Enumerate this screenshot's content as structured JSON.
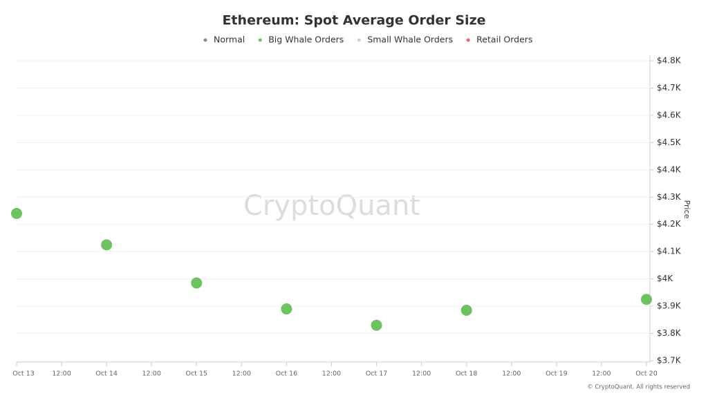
{
  "chart_data": {
    "type": "scatter",
    "title": "Ethereum: Spot Average Order Size",
    "categories": [
      "Oct 13",
      "12:00",
      "Oct 14",
      "12:00",
      "Oct 15",
      "12:00",
      "Oct 16",
      "12:00",
      "Oct 17",
      "12:00",
      "Oct 18",
      "12:00",
      "Oct 19",
      "12:00",
      "Oct 20"
    ],
    "series": [
      {
        "name": "Normal",
        "color": "#8c8c8c",
        "values": [
          null,
          null,
          null,
          null,
          null,
          null,
          null,
          null,
          null,
          null,
          null,
          null,
          null,
          null,
          null
        ]
      },
      {
        "name": "Big Whale Orders",
        "color": "#6cc35f",
        "values": [
          4240,
          null,
          4125,
          null,
          3985,
          null,
          3890,
          null,
          3830,
          null,
          3885,
          null,
          null,
          null,
          3925
        ]
      },
      {
        "name": "Small Whale Orders",
        "color": "#d0d0d0",
        "values": [
          null,
          null,
          null,
          null,
          null,
          null,
          null,
          null,
          null,
          null,
          null,
          null,
          null,
          null,
          null
        ]
      },
      {
        "name": "Retail Orders",
        "color": "#e36c6c",
        "values": [
          null,
          null,
          null,
          null,
          null,
          null,
          null,
          null,
          null,
          null,
          null,
          null,
          null,
          null,
          null
        ]
      }
    ],
    "y_label": "Price",
    "ylim": [
      3700,
      4800
    ],
    "yticks": [
      {
        "value": 3700,
        "label": "$3.7K"
      },
      {
        "value": 3800,
        "label": "$3.8K"
      },
      {
        "value": 3900,
        "label": "$3.9K"
      },
      {
        "value": 4000,
        "label": "$4K"
      },
      {
        "value": 4100,
        "label": "$4.1K"
      },
      {
        "value": 4200,
        "label": "$4.2K"
      },
      {
        "value": 4300,
        "label": "$4.3K"
      },
      {
        "value": 4400,
        "label": "$4.4K"
      },
      {
        "value": 4500,
        "label": "$4.5K"
      },
      {
        "value": 4600,
        "label": "$4.6K"
      },
      {
        "value": 4700,
        "label": "$4.7K"
      },
      {
        "value": 4800,
        "label": "$4.8K"
      }
    ],
    "grid": true,
    "watermark": "CryptoQuant",
    "footer": "© CryptoQuant. All rights reserved"
  }
}
